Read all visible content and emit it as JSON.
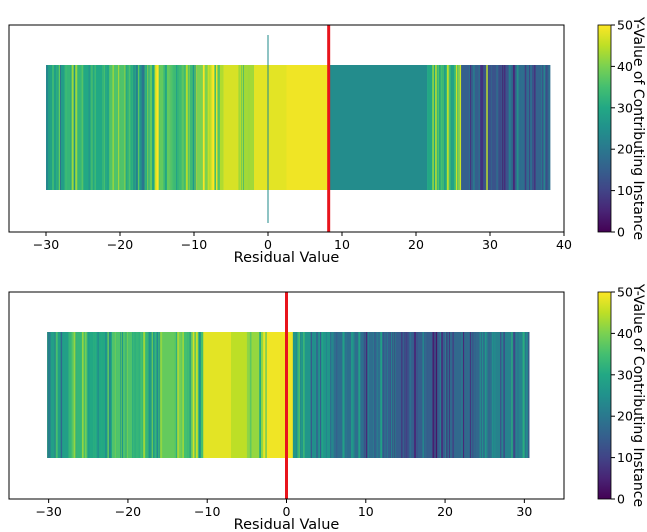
{
  "chart_data": [
    {
      "type": "heatmap",
      "title": "",
      "xlabel": "Residual Value",
      "ylabel": "",
      "xlim": [
        -35,
        40
      ],
      "x_ticks": [
        -30,
        -20,
        -10,
        0,
        10,
        20,
        30,
        40
      ],
      "x_tick_labels": [
        "−30",
        "−20",
        "−10",
        "0",
        "10",
        "20",
        "30",
        "40"
      ],
      "residual_range": [
        -30,
        38
      ],
      "threshold": 8.2,
      "marker_x": 0,
      "grid": false,
      "description_of_marks": "vertical stripes at residual positions colored by y-value",
      "stripes": [
        {
          "x0": -30.0,
          "x1": -27.5,
          "value": 28
        },
        {
          "x0": -27.5,
          "x1": -25.0,
          "value": 33
        },
        {
          "x0": -25.0,
          "x1": -22.0,
          "value": 30
        },
        {
          "x0": -22.0,
          "x1": -19.0,
          "value": 36
        },
        {
          "x0": -19.0,
          "x1": -16.0,
          "value": 31
        },
        {
          "x0": -16.0,
          "x1": -13.0,
          "value": 38
        },
        {
          "x0": -13.0,
          "x1": -10.0,
          "value": 34
        },
        {
          "x0": -10.0,
          "x1": -8.0,
          "value": 40
        },
        {
          "x0": -8.0,
          "x1": -6.0,
          "value": 44
        },
        {
          "x0": -6.0,
          "x1": -4.0,
          "value": 47
        },
        {
          "x0": -4.0,
          "x1": -2.0,
          "value": 43
        },
        {
          "x0": -2.0,
          "x1": 2.5,
          "value": 48
        },
        {
          "x0": 2.5,
          "x1": 8.2,
          "value": 49
        },
        {
          "x0": 8.2,
          "x1": 21.5,
          "value": 24
        },
        {
          "x0": 21.5,
          "x1": 23.0,
          "value": 30
        },
        {
          "x0": 23.0,
          "x1": 26.0,
          "value": 28
        },
        {
          "x0": 26.0,
          "x1": 29.0,
          "value": 15
        },
        {
          "x0": 29.0,
          "x1": 33.5,
          "value": 13
        },
        {
          "x0": 33.5,
          "x1": 36.0,
          "value": 18
        },
        {
          "x0": 36.0,
          "x1": 38.0,
          "value": 16
        }
      ]
    },
    {
      "type": "heatmap",
      "title": "",
      "xlabel": "Residual Value",
      "ylabel": "",
      "xlim": [
        -35,
        35
      ],
      "x_ticks": [
        -30,
        -20,
        -10,
        0,
        10,
        20,
        30
      ],
      "x_tick_labels": [
        "−30",
        "−20",
        "−10",
        "0",
        "10",
        "20",
        "30"
      ],
      "residual_range": [
        -30.2,
        30.6
      ],
      "threshold": 0,
      "grid": false,
      "description_of_marks": "vertical stripes at residual positions colored by y-value",
      "stripes": [
        {
          "x0": -30.2,
          "x1": -27.5,
          "value": 28
        },
        {
          "x0": -27.5,
          "x1": -25.0,
          "value": 33
        },
        {
          "x0": -25.0,
          "x1": -22.0,
          "value": 30
        },
        {
          "x0": -22.0,
          "x1": -19.0,
          "value": 36
        },
        {
          "x0": -19.0,
          "x1": -16.0,
          "value": 33
        },
        {
          "x0": -16.0,
          "x1": -13.0,
          "value": 38
        },
        {
          "x0": -13.0,
          "x1": -10.5,
          "value": 35
        },
        {
          "x0": -10.5,
          "x1": -7.0,
          "value": 48
        },
        {
          "x0": -7.0,
          "x1": -5.0,
          "value": 45
        },
        {
          "x0": -5.0,
          "x1": -2.5,
          "value": 42
        },
        {
          "x0": -2.5,
          "x1": 0.8,
          "value": 49
        },
        {
          "x0": 0.8,
          "x1": 5.5,
          "value": 26
        },
        {
          "x0": 5.5,
          "x1": 12.0,
          "value": 18
        },
        {
          "x0": 12.0,
          "x1": 20.0,
          "value": 15
        },
        {
          "x0": 20.0,
          "x1": 26.0,
          "value": 17
        },
        {
          "x0": 26.0,
          "x1": 30.6,
          "value": 22
        }
      ]
    }
  ],
  "colorbar": {
    "label": "Y-Value of Contributing Instance",
    "min": 0,
    "max": 50,
    "ticks": [
      0,
      10,
      20,
      30,
      40,
      50
    ],
    "tick_labels": [
      "0",
      "10",
      "20",
      "30",
      "40",
      "50"
    ],
    "colormap": "viridis"
  },
  "colors": {
    "threshold_line": "#e8141c",
    "marker_line": "#1f8a8a",
    "frame": "#000000"
  }
}
